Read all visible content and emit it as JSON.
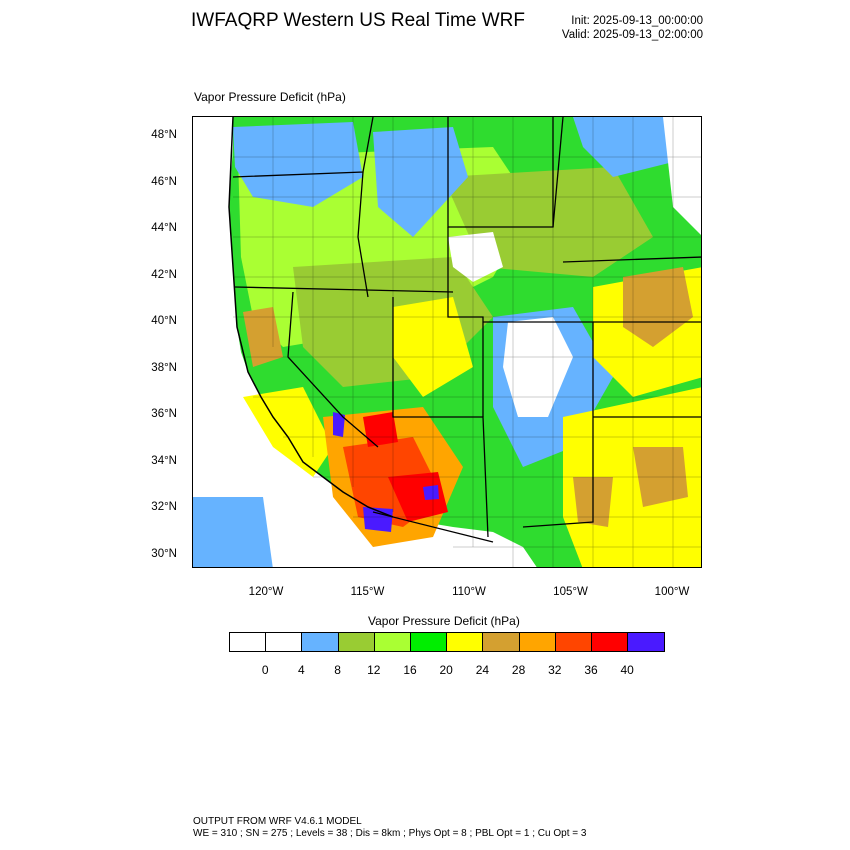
{
  "header": {
    "title": "IWFAQRP Western US Real Time WRF",
    "init_line": "Init: 2025-09-13_00:00:00",
    "valid_line": "Valid: 2025-09-13_02:00:00"
  },
  "panel": {
    "title": "Vapor Pressure Deficit   (hPa)"
  },
  "map": {
    "lat_labels": [
      "48°N",
      "46°N",
      "44°N",
      "42°N",
      "40°N",
      "38°N",
      "36°N",
      "34°N",
      "32°N",
      "30°N"
    ],
    "lon_labels": [
      "120°W",
      "115°W",
      "110°W",
      "105°W",
      "100°W"
    ]
  },
  "colorbar": {
    "title": "Vapor Pressure Deficit  (hPa)",
    "colors": [
      "#ffffff",
      "#ffffff",
      "#66b3ff",
      "#99cc33",
      "#aaff33",
      "#00ee00",
      "#ffff00",
      "#d4a030",
      "#ffa500",
      "#ff4500",
      "#ff0000",
      "#4a1aff"
    ],
    "labels": [
      "0",
      "4",
      "8",
      "12",
      "16",
      "20",
      "24",
      "28",
      "32",
      "36",
      "40"
    ]
  },
  "footer": {
    "line1": "OUTPUT FROM WRF V4.6.1 MODEL",
    "line2": "WE = 310 ; SN = 275 ; Levels = 38 ; Dis = 8km ; Phys Opt = 8 ; PBL Opt = 1 ; Cu Opt = 3"
  }
}
